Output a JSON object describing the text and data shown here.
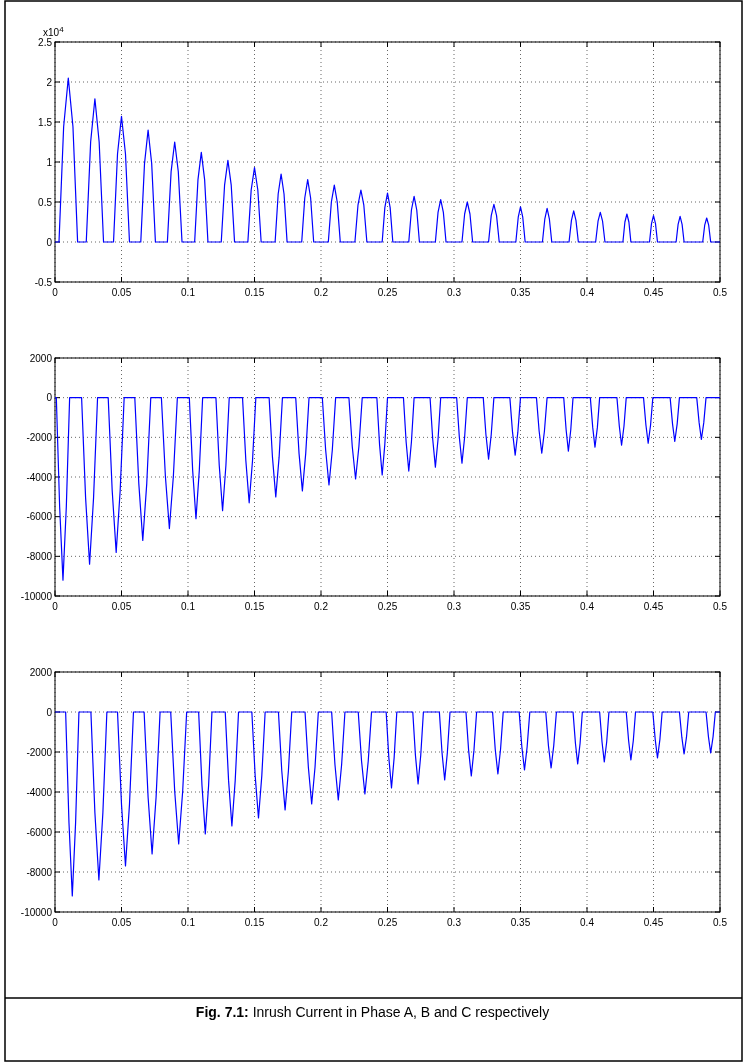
{
  "chart_data": [
    {
      "type": "line",
      "xlim": [
        0,
        0.5
      ],
      "ylim": [
        -0.5,
        2.5
      ],
      "xticks": [
        0,
        0.05,
        0.1,
        0.15,
        0.2,
        0.25,
        0.3,
        0.35,
        0.4,
        0.45,
        0.5
      ],
      "yticks": [
        -0.5,
        0,
        0.5,
        1,
        1.5,
        2,
        2.5
      ],
      "grid": true,
      "annotations": [
        "x10$^{4}$"
      ],
      "series": [
        {
          "color": "#0000ff",
          "x": [
            0,
            0.003,
            0.0065,
            0.01,
            0.0135,
            0.017,
            0.0235,
            0.0268,
            0.03,
            0.0332,
            0.0365,
            0.044,
            0.047,
            0.05,
            0.053,
            0.056,
            0.0645,
            0.0673,
            0.07,
            0.0727,
            0.0755,
            0.0845,
            0.0873,
            0.09,
            0.0927,
            0.0955,
            0.105,
            0.1075,
            0.11,
            0.1125,
            0.115,
            0.125,
            0.1275,
            0.13,
            0.1325,
            0.135,
            0.145,
            0.1475,
            0.15,
            0.1525,
            0.155,
            0.1655,
            0.1678,
            0.17,
            0.1722,
            0.1745,
            0.1855,
            0.1878,
            0.19,
            0.1922,
            0.1945,
            0.2055,
            0.2078,
            0.21,
            0.2122,
            0.2145,
            0.2255,
            0.2278,
            0.23,
            0.2322,
            0.2345,
            0.246,
            0.248,
            0.25,
            0.252,
            0.254,
            0.266,
            0.268,
            0.27,
            0.272,
            0.274,
            0.286,
            0.288,
            0.29,
            0.292,
            0.294,
            0.306,
            0.308,
            0.31,
            0.312,
            0.314,
            0.326,
            0.328,
            0.33,
            0.332,
            0.334,
            0.3465,
            0.3483,
            0.35,
            0.3517,
            0.3535,
            0.3665,
            0.3683,
            0.37,
            0.3717,
            0.3735,
            0.3865,
            0.3883,
            0.39,
            0.3917,
            0.3935,
            0.4065,
            0.4083,
            0.41,
            0.4117,
            0.4135,
            0.427,
            0.4285,
            0.43,
            0.4315,
            0.433,
            0.447,
            0.4485,
            0.45,
            0.4515,
            0.453,
            0.467,
            0.4685,
            0.47,
            0.4715,
            0.473,
            0.487,
            0.4885,
            0.49,
            0.4915,
            0.493,
            0.5
          ],
          "values": [
            0,
            0,
            1.44,
            2.05,
            1.44,
            0,
            0,
            1.25,
            1.79,
            1.25,
            0,
            0,
            1.1,
            1.57,
            1.1,
            0,
            0,
            0.98,
            1.4,
            0.98,
            0,
            0,
            0.88,
            1.25,
            0.88,
            0,
            0,
            0.78,
            1.12,
            0.78,
            0,
            0,
            0.71,
            1.02,
            0.71,
            0,
            0,
            0.65,
            0.93,
            0.65,
            0,
            0,
            0.6,
            0.85,
            0.6,
            0,
            0,
            0.55,
            0.78,
            0.55,
            0,
            0,
            0.5,
            0.71,
            0.5,
            0,
            0,
            0.46,
            0.65,
            0.46,
            0,
            0,
            0.43,
            0.61,
            0.43,
            0,
            0,
            0.4,
            0.57,
            0.4,
            0,
            0,
            0.37,
            0.53,
            0.37,
            0,
            0,
            0.35,
            0.5,
            0.35,
            0,
            0,
            0.33,
            0.47,
            0.33,
            0,
            0,
            0.31,
            0.44,
            0.31,
            0,
            0,
            0.29,
            0.42,
            0.29,
            0,
            0,
            0.27,
            0.39,
            0.27,
            0,
            0,
            0.26,
            0.37,
            0.26,
            0,
            0,
            0.25,
            0.35,
            0.25,
            0,
            0,
            0.23,
            0.33,
            0.23,
            0,
            0,
            0.22,
            0.32,
            0.22,
            0,
            0,
            0.21,
            0.3,
            0.21,
            0,
            0
          ]
        }
      ]
    },
    {
      "type": "line",
      "xlim": [
        0,
        0.5
      ],
      "ylim": [
        -10000,
        2000
      ],
      "xticks": [
        0,
        0.05,
        0.1,
        0.15,
        0.2,
        0.25,
        0.3,
        0.35,
        0.4,
        0.45,
        0.5
      ],
      "yticks": [
        -10000,
        -8000,
        -6000,
        -4000,
        -2000,
        0,
        2000
      ],
      "grid": true,
      "series": [
        {
          "color": "#0000ff",
          "x": [
            0,
            0.001,
            0.0035,
            0.006,
            0.0085,
            0.011,
            0.02,
            0.023,
            0.026,
            0.029,
            0.032,
            0.04,
            0.043,
            0.046,
            0.049,
            0.052,
            0.06,
            0.063,
            0.066,
            0.069,
            0.072,
            0.08,
            0.083,
            0.086,
            0.089,
            0.092,
            0.101,
            0.1035,
            0.106,
            0.1085,
            0.111,
            0.121,
            0.1235,
            0.126,
            0.1285,
            0.131,
            0.141,
            0.1435,
            0.146,
            0.1485,
            0.151,
            0.161,
            0.1635,
            0.166,
            0.1685,
            0.171,
            0.181,
            0.1835,
            0.186,
            0.1885,
            0.191,
            0.201,
            0.2035,
            0.206,
            0.2085,
            0.211,
            0.221,
            0.2235,
            0.226,
            0.2285,
            0.231,
            0.242,
            0.244,
            0.246,
            0.248,
            0.25,
            0.262,
            0.264,
            0.266,
            0.268,
            0.27,
            0.282,
            0.284,
            0.286,
            0.288,
            0.29,
            0.302,
            0.304,
            0.306,
            0.308,
            0.31,
            0.322,
            0.324,
            0.326,
            0.328,
            0.33,
            0.342,
            0.344,
            0.346,
            0.348,
            0.35,
            0.362,
            0.364,
            0.366,
            0.368,
            0.37,
            0.3825,
            0.3843,
            0.386,
            0.3878,
            0.3895,
            0.4025,
            0.4043,
            0.406,
            0.4078,
            0.4095,
            0.4225,
            0.4243,
            0.426,
            0.4278,
            0.4295,
            0.4425,
            0.4443,
            0.446,
            0.4478,
            0.4495,
            0.4625,
            0.4643,
            0.466,
            0.4678,
            0.4695,
            0.4825,
            0.4843,
            0.486,
            0.4878,
            0.4895,
            0.5
          ],
          "values": [
            0,
            0,
            -5520,
            -9200,
            -5520,
            0,
            0,
            -5040,
            -8400,
            -5040,
            0,
            0,
            -4680,
            -7800,
            -4680,
            0,
            0,
            -4320,
            -7200,
            -4320,
            0,
            0,
            -3960,
            -6600,
            -3960,
            0,
            0,
            -3660,
            -6100,
            -3660,
            0,
            0,
            -3420,
            -5700,
            -3420,
            0,
            0,
            -3180,
            -5300,
            -3180,
            0,
            0,
            -3000,
            -5000,
            -3000,
            0,
            0,
            -2820,
            -4700,
            -2820,
            0,
            0,
            -2640,
            -4400,
            -2640,
            0,
            0,
            -2460,
            -4100,
            -2460,
            0,
            0,
            -2340,
            -3900,
            -2340,
            0,
            0,
            -2220,
            -3700,
            -2220,
            0,
            0,
            -2100,
            -3500,
            -2100,
            0,
            0,
            -1980,
            -3300,
            -1980,
            0,
            0,
            -1860,
            -3100,
            -1860,
            0,
            0,
            -1740,
            -2900,
            -1740,
            0,
            0,
            -1680,
            -2800,
            -1680,
            0,
            0,
            -1620,
            -2700,
            -1620,
            0,
            0,
            -1500,
            -2500,
            -1500,
            0,
            0,
            -1440,
            -2400,
            -1440,
            0,
            0,
            -1380,
            -2300,
            -1380,
            0,
            0,
            -1320,
            -2200,
            -1320,
            0,
            0,
            -1260,
            -2100,
            -1260,
            0,
            0
          ]
        }
      ]
    },
    {
      "type": "line",
      "xlim": [
        0,
        0.5
      ],
      "ylim": [
        -10000,
        2000
      ],
      "xticks": [
        0,
        0.05,
        0.1,
        0.15,
        0.2,
        0.25,
        0.3,
        0.35,
        0.4,
        0.45,
        0.5
      ],
      "yticks": [
        -10000,
        -8000,
        -6000,
        -4000,
        -2000,
        0,
        2000
      ],
      "grid": true,
      "annotations": [
        "Fig. 7.1: Inrush Current in Phase A, B and C respectively"
      ],
      "series": [
        {
          "color": "#0000ff",
          "x": [
            0,
            0.008,
            0.0105,
            0.013,
            0.0155,
            0.018,
            0.027,
            0.03,
            0.033,
            0.036,
            0.039,
            0.047,
            0.05,
            0.053,
            0.056,
            0.059,
            0.067,
            0.07,
            0.073,
            0.076,
            0.079,
            0.087,
            0.09,
            0.093,
            0.096,
            0.099,
            0.108,
            0.1105,
            0.113,
            0.1155,
            0.118,
            0.128,
            0.1305,
            0.133,
            0.1355,
            0.138,
            0.148,
            0.1505,
            0.153,
            0.1555,
            0.158,
            0.168,
            0.1705,
            0.173,
            0.1755,
            0.178,
            0.188,
            0.1905,
            0.193,
            0.1955,
            0.198,
            0.208,
            0.2105,
            0.213,
            0.2155,
            0.218,
            0.228,
            0.2305,
            0.233,
            0.2355,
            0.238,
            0.249,
            0.251,
            0.253,
            0.255,
            0.257,
            0.269,
            0.271,
            0.273,
            0.275,
            0.277,
            0.289,
            0.291,
            0.293,
            0.295,
            0.297,
            0.309,
            0.311,
            0.313,
            0.315,
            0.317,
            0.329,
            0.331,
            0.333,
            0.335,
            0.337,
            0.349,
            0.351,
            0.353,
            0.355,
            0.357,
            0.369,
            0.371,
            0.373,
            0.375,
            0.377,
            0.3895,
            0.3913,
            0.393,
            0.3948,
            0.3965,
            0.4095,
            0.4113,
            0.413,
            0.4148,
            0.4165,
            0.4295,
            0.4313,
            0.433,
            0.4348,
            0.4365,
            0.4495,
            0.4513,
            0.453,
            0.4548,
            0.4565,
            0.4695,
            0.4713,
            0.473,
            0.4748,
            0.4765,
            0.4895,
            0.4913,
            0.493,
            0.4948,
            0.4965,
            0.5
          ],
          "values": [
            0,
            0,
            -5520,
            -9200,
            -5520,
            0,
            0,
            -5040,
            -8400,
            -5040,
            0,
            0,
            -4620,
            -7700,
            -4620,
            0,
            0,
            -4260,
            -7100,
            -4260,
            0,
            0,
            -3960,
            -6600,
            -3960,
            0,
            0,
            -3660,
            -6100,
            -3660,
            0,
            0,
            -3420,
            -5700,
            -3420,
            0,
            0,
            -3180,
            -5300,
            -3180,
            0,
            0,
            -2940,
            -4900,
            -2940,
            0,
            0,
            -2760,
            -4600,
            -2760,
            0,
            0,
            -2640,
            -4400,
            -2640,
            0,
            0,
            -2460,
            -4100,
            -2460,
            0,
            0,
            -2280,
            -3800,
            -2280,
            0,
            0,
            -2160,
            -3600,
            -2160,
            0,
            0,
            -2040,
            -3400,
            -2040,
            0,
            0,
            -1920,
            -3200,
            -1920,
            0,
            0,
            -1860,
            -3100,
            -1860,
            0,
            0,
            -1740,
            -2900,
            -1740,
            0,
            0,
            -1680,
            -2800,
            -1680,
            0,
            0,
            -1560,
            -2600,
            -1560,
            0,
            0,
            -1500,
            -2500,
            -1500,
            0,
            0,
            -1440,
            -2400,
            -1440,
            0,
            0,
            -1380,
            -2300,
            -1380,
            0,
            0,
            -1260,
            -2100,
            -1260,
            0,
            0,
            -1230,
            -2050,
            -1230,
            0,
            0
          ]
        }
      ]
    }
  ]
}
